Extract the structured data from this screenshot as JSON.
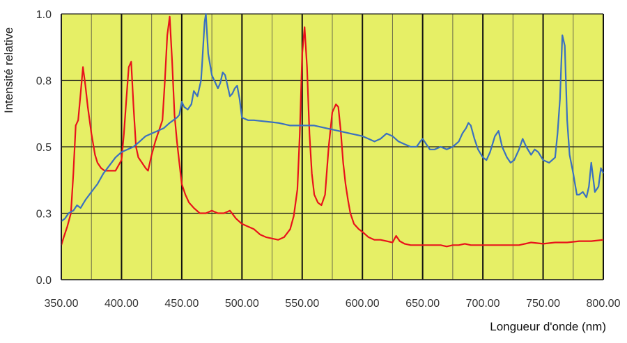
{
  "chart_data": {
    "type": "line",
    "title": "",
    "xlabel": "Longueur d'onde (nm)",
    "ylabel": "Intensité relative",
    "xlim": [
      350,
      800
    ],
    "ylim": [
      0,
      1
    ],
    "x_ticks": [
      "350.00",
      "400.00",
      "450.00",
      "500.00",
      "550.00",
      "600.00",
      "650.00",
      "700.00",
      "750.00",
      "800.00"
    ],
    "y_ticks": [
      "0.0",
      "0.3",
      "0.5",
      "0.8",
      "1.0"
    ],
    "x_tick_values": [
      350,
      400,
      450,
      500,
      550,
      600,
      650,
      700,
      750,
      800
    ],
    "y_tick_values": [
      0,
      0.25,
      0.5,
      0.75,
      1.0
    ],
    "grid": true,
    "plot_background": "#e6ef66",
    "series": [
      {
        "color": "#e8121b",
        "x": [
          350,
          352,
          355,
          358,
          360,
          362,
          364,
          366,
          368,
          370,
          372,
          375,
          378,
          380,
          383,
          386,
          390,
          395,
          400,
          402,
          404,
          406,
          408,
          410,
          412,
          414,
          417,
          420,
          422,
          425,
          428,
          431,
          434,
          436,
          438,
          440,
          442,
          444,
          446,
          448,
          450,
          453,
          456,
          460,
          465,
          470,
          475,
          480,
          485,
          490,
          495,
          500,
          505,
          510,
          515,
          520,
          525,
          530,
          535,
          540,
          543,
          546,
          548,
          550,
          552,
          554,
          556,
          558,
          560,
          563,
          566,
          569,
          572,
          575,
          578,
          580,
          582,
          584,
          586,
          588,
          590,
          593,
          597,
          600,
          605,
          610,
          615,
          620,
          625,
          628,
          631,
          635,
          640,
          645,
          650,
          655,
          660,
          665,
          670,
          675,
          680,
          685,
          690,
          695,
          700,
          710,
          720,
          730,
          740,
          750,
          760,
          770,
          780,
          790,
          800
        ],
        "y": [
          0.13,
          0.16,
          0.2,
          0.25,
          0.4,
          0.58,
          0.6,
          0.7,
          0.8,
          0.73,
          0.65,
          0.55,
          0.47,
          0.44,
          0.42,
          0.41,
          0.41,
          0.41,
          0.45,
          0.55,
          0.68,
          0.8,
          0.82,
          0.65,
          0.5,
          0.46,
          0.44,
          0.42,
          0.41,
          0.47,
          0.52,
          0.56,
          0.6,
          0.75,
          0.92,
          0.99,
          0.82,
          0.62,
          0.52,
          0.44,
          0.36,
          0.32,
          0.29,
          0.27,
          0.25,
          0.25,
          0.26,
          0.25,
          0.25,
          0.26,
          0.23,
          0.21,
          0.2,
          0.19,
          0.17,
          0.16,
          0.155,
          0.15,
          0.16,
          0.19,
          0.24,
          0.34,
          0.55,
          0.85,
          0.95,
          0.8,
          0.55,
          0.4,
          0.32,
          0.29,
          0.28,
          0.32,
          0.5,
          0.63,
          0.66,
          0.65,
          0.56,
          0.44,
          0.36,
          0.3,
          0.25,
          0.21,
          0.19,
          0.18,
          0.16,
          0.15,
          0.15,
          0.145,
          0.14,
          0.165,
          0.145,
          0.135,
          0.13,
          0.13,
          0.13,
          0.13,
          0.13,
          0.13,
          0.125,
          0.13,
          0.13,
          0.135,
          0.13,
          0.13,
          0.13,
          0.13,
          0.13,
          0.13,
          0.14,
          0.135,
          0.14,
          0.14,
          0.145,
          0.145,
          0.15
        ]
      },
      {
        "color": "#3a70c0",
        "x": [
          350,
          353,
          356,
          360,
          363,
          366,
          370,
          375,
          380,
          385,
          390,
          395,
          400,
          405,
          410,
          415,
          420,
          425,
          430,
          435,
          440,
          443,
          446,
          448,
          450,
          452,
          455,
          458,
          460,
          463,
          466,
          467,
          469,
          470,
          472,
          475,
          478,
          480,
          482,
          484,
          486,
          488,
          490,
          492,
          494,
          496,
          498,
          500,
          505,
          510,
          520,
          530,
          540,
          550,
          560,
          570,
          580,
          590,
          600,
          605,
          610,
          615,
          620,
          625,
          630,
          635,
          640,
          645,
          648,
          650,
          653,
          656,
          660,
          665,
          670,
          675,
          680,
          683,
          686,
          688,
          690,
          693,
          696,
          700,
          703,
          706,
          710,
          713,
          716,
          720,
          723,
          726,
          730,
          733,
          736,
          740,
          743,
          746,
          750,
          755,
          760,
          762,
          764,
          766,
          768,
          770,
          772,
          775,
          778,
          780,
          783,
          786,
          788,
          790,
          793,
          796,
          798,
          800
        ],
        "y": [
          0.22,
          0.23,
          0.25,
          0.26,
          0.28,
          0.27,
          0.3,
          0.33,
          0.36,
          0.4,
          0.43,
          0.46,
          0.48,
          0.49,
          0.5,
          0.52,
          0.54,
          0.55,
          0.56,
          0.57,
          0.59,
          0.6,
          0.61,
          0.62,
          0.67,
          0.65,
          0.64,
          0.66,
          0.71,
          0.69,
          0.75,
          0.82,
          0.97,
          1.0,
          0.85,
          0.77,
          0.74,
          0.72,
          0.74,
          0.78,
          0.77,
          0.73,
          0.69,
          0.7,
          0.72,
          0.73,
          0.68,
          0.61,
          0.6,
          0.6,
          0.595,
          0.59,
          0.58,
          0.58,
          0.58,
          0.57,
          0.56,
          0.55,
          0.54,
          0.53,
          0.52,
          0.53,
          0.55,
          0.54,
          0.52,
          0.51,
          0.5,
          0.5,
          0.52,
          0.53,
          0.51,
          0.49,
          0.49,
          0.5,
          0.49,
          0.5,
          0.52,
          0.55,
          0.57,
          0.59,
          0.58,
          0.53,
          0.49,
          0.46,
          0.45,
          0.48,
          0.54,
          0.56,
          0.5,
          0.46,
          0.44,
          0.45,
          0.49,
          0.53,
          0.5,
          0.47,
          0.49,
          0.48,
          0.45,
          0.44,
          0.46,
          0.55,
          0.68,
          0.92,
          0.88,
          0.6,
          0.47,
          0.4,
          0.32,
          0.32,
          0.33,
          0.31,
          0.35,
          0.44,
          0.33,
          0.35,
          0.42,
          0.4
        ]
      }
    ]
  }
}
